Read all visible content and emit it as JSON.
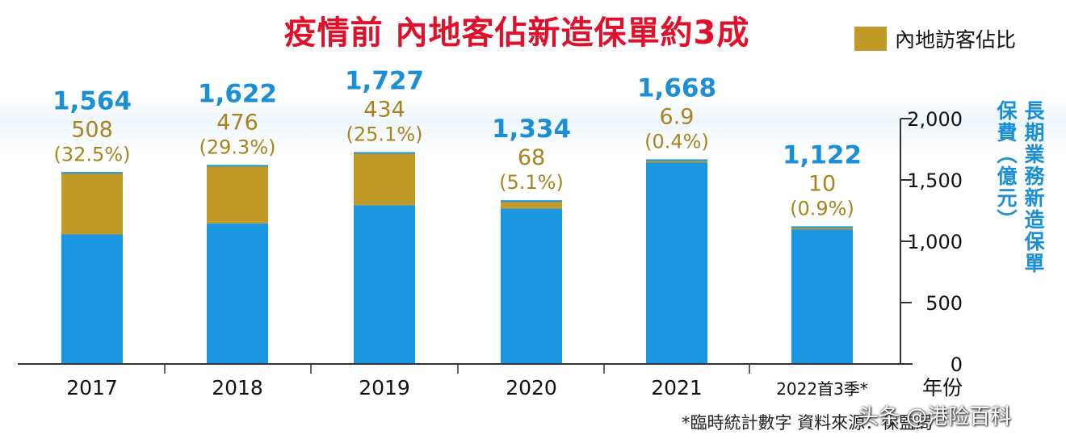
{
  "title": "疫情前  內地客佔新造保單約3成",
  "legend": {
    "label": "內地訪客佔比",
    "color": "#c29a28"
  },
  "y_axis_label_left": "保費（億元）",
  "y_axis_label_right": "長期業務新造保單",
  "x_axis_label": "年份",
  "footnote": "*臨時統計數字 資料來源：保監局",
  "watermark": "头条 @港险百科",
  "colors": {
    "total": "#1a97e0",
    "mainland": "#c29a28",
    "axis": "#333333",
    "total_label": "#1a8fd6",
    "mainland_label": "#a6841e"
  },
  "chart_data": {
    "type": "bar",
    "title": "疫情前 內地客佔新造保單約3成",
    "categories": [
      "2017",
      "2018",
      "2019",
      "2020",
      "2021",
      "2022首3季*"
    ],
    "series": [
      {
        "name": "長期業務新造保單保費（億元）",
        "values": [
          1564,
          1622,
          1727,
          1334,
          1668,
          1122
        ]
      },
      {
        "name": "內地訪客佔比",
        "values": [
          508,
          476,
          434,
          68,
          6.9,
          10
        ]
      }
    ],
    "total_labels": [
      "1,564",
      "1,622",
      "1,727",
      "1,334",
      "1,668",
      "1,122"
    ],
    "mainland_labels": [
      "508",
      "476",
      "434",
      "68",
      "6.9",
      "10"
    ],
    "pct_labels": [
      "(32.5%)",
      "(29.3%)",
      "(25.1%)",
      "(5.1%)",
      "(0.4%)",
      "(0.9%)"
    ],
    "ylim": [
      0,
      2000
    ],
    "yticks": [
      0,
      500,
      1000,
      1500,
      2000
    ],
    "ytick_labels": [
      "0",
      "500",
      "1,000",
      "1,500",
      "2,000"
    ],
    "xlabel": "年份",
    "ylabel": "長期業務新造保單保費（億元）"
  }
}
